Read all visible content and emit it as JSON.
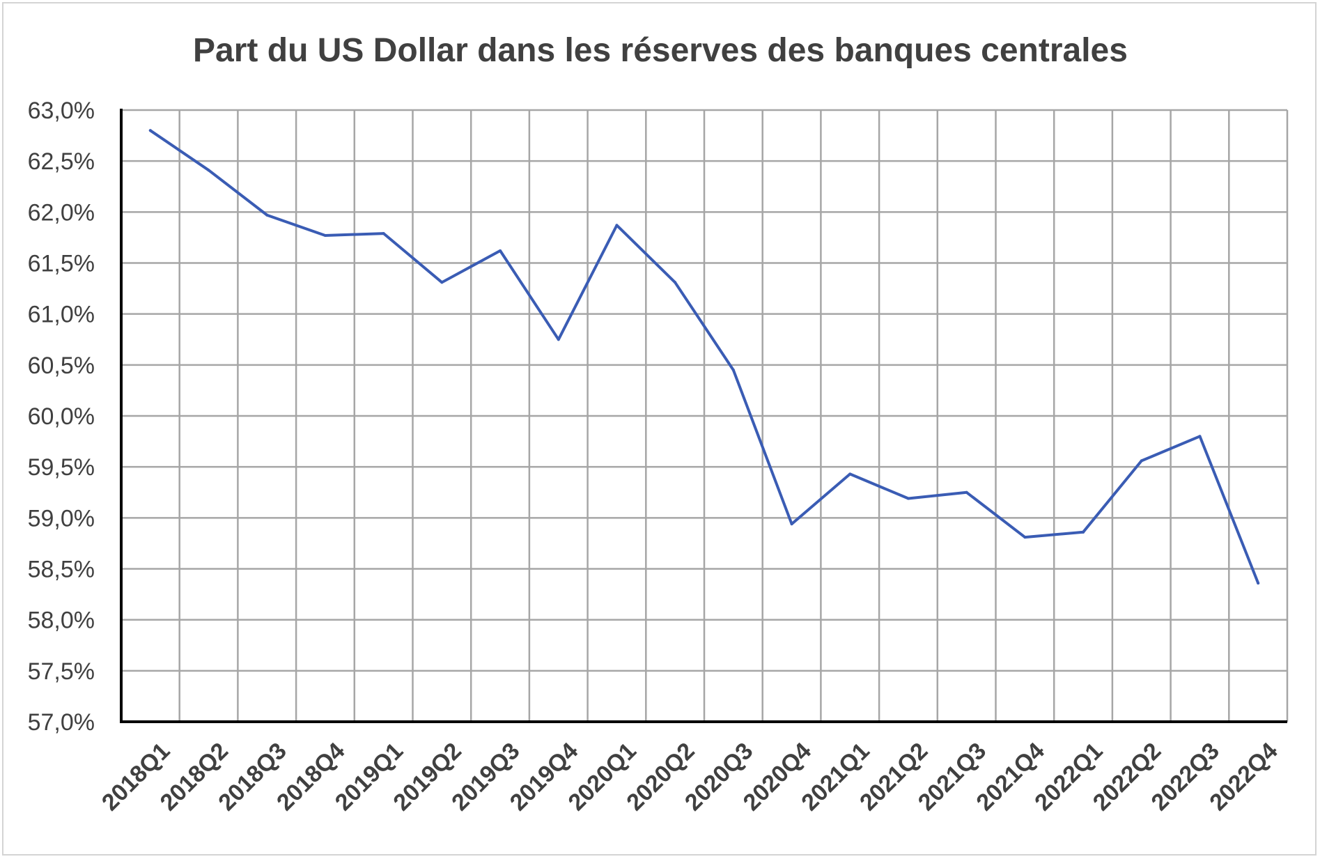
{
  "chart_data": {
    "type": "line",
    "title": "Part du US Dollar dans les réserves des banques centrales",
    "xlabel": "",
    "ylabel": "",
    "categories": [
      "2018Q1",
      "2018Q2",
      "2018Q3",
      "2018Q4",
      "2019Q1",
      "2019Q2",
      "2019Q3",
      "2019Q4",
      "2020Q1",
      "2020Q2",
      "2020Q3",
      "2020Q4",
      "2021Q1",
      "2021Q2",
      "2021Q3",
      "2021Q4",
      "2022Q1",
      "2022Q2",
      "2022Q3",
      "2022Q4"
    ],
    "series": [
      {
        "values": [
          62.8,
          62.41,
          61.97,
          61.77,
          61.79,
          61.31,
          61.62,
          60.75,
          61.87,
          61.31,
          60.45,
          58.94,
          59.43,
          59.19,
          59.25,
          58.81,
          58.86,
          59.56,
          59.8,
          58.36
        ],
        "color": "#3a5cb4"
      }
    ],
    "ylim": [
      57.0,
      63.0
    ],
    "yticks": [
      "57,0%",
      "57,5%",
      "58,0%",
      "58,5%",
      "59,0%",
      "59,5%",
      "60,0%",
      "60,5%",
      "61,0%",
      "61,5%",
      "62,0%",
      "62,5%",
      "63,0%"
    ],
    "grid": true,
    "legend": "none"
  }
}
